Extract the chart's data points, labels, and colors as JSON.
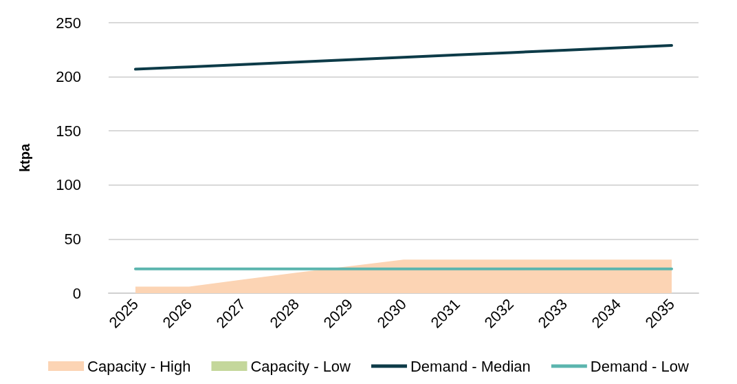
{
  "chart_data": {
    "type": "line",
    "ylabel": "ktpa",
    "categories": [
      "2025",
      "2026",
      "2027",
      "2028",
      "2029",
      "2030",
      "2031",
      "2032",
      "2033",
      "2034",
      "2035"
    ],
    "series": [
      {
        "name": "Capacity - High",
        "type": "area",
        "color": "#fcd4b4",
        "values": [
          6,
          6,
          12.5,
          19,
          25,
          31,
          31,
          31,
          31,
          31,
          31
        ]
      },
      {
        "name": "Capacity - Low",
        "type": "area",
        "color": "#c4d79b",
        "values": [
          null,
          null,
          null,
          null,
          null,
          null,
          null,
          null,
          null,
          null,
          null
        ]
      },
      {
        "name": "Demand - Median",
        "color": "#0d3b48",
        "values": [
          207,
          209.2,
          211.4,
          213.6,
          215.8,
          218,
          220.2,
          222.4,
          224.6,
          226.8,
          229
        ]
      },
      {
        "name": "Demand - Low",
        "color": "#5bb5ae",
        "values": [
          22.5,
          22.5,
          22.5,
          22.5,
          22.5,
          22.5,
          22.5,
          22.5,
          22.5,
          22.5,
          22.5
        ]
      }
    ],
    "ylim": [
      0,
      250
    ],
    "yticks": [
      0,
      50,
      100,
      150,
      200,
      250
    ],
    "grid": "y",
    "legend": "bottom",
    "marker": "none",
    "line_style": "solid"
  }
}
